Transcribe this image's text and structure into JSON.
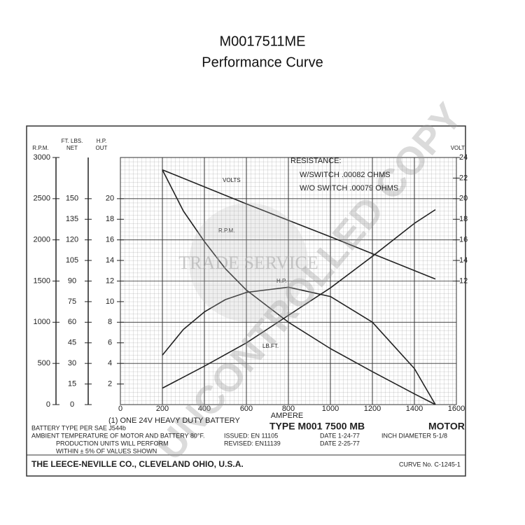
{
  "header": {
    "title": "M0017511ME",
    "subtitle": "Performance Curve"
  },
  "chart_data": {
    "type": "line",
    "x_label": "AMPERE",
    "xlim": [
      0,
      1600
    ],
    "xticks": [
      0,
      200,
      400,
      600,
      800,
      1000,
      1200,
      1400,
      1600
    ],
    "grid": true,
    "axes": {
      "rpm": {
        "label": "R.P.M.",
        "lim": [
          0,
          3000
        ],
        "ticks": [
          0,
          500,
          1000,
          1500,
          2000,
          2500,
          3000
        ]
      },
      "ftlbs": {
        "label": [
          "FT. LBS.",
          "NET"
        ],
        "lim": [
          0,
          180
        ],
        "ticks": [
          0,
          15,
          30,
          45,
          60,
          75,
          90,
          105,
          120,
          135,
          150
        ]
      },
      "hp": {
        "label": [
          "H.P.",
          "OUT"
        ],
        "lim": [
          0,
          24
        ],
        "ticks": [
          2,
          4,
          6,
          8,
          10,
          12,
          14,
          16,
          18,
          20
        ]
      },
      "volt": {
        "label": "VOLT",
        "lim": [
          0,
          24
        ],
        "ticks": [
          12,
          14,
          16,
          18,
          20,
          22,
          24
        ]
      }
    },
    "series": [
      {
        "name": "VOLTS",
        "axis": "volt",
        "color": "#222",
        "x": [
          200,
          600,
          1000,
          1500
        ],
        "values": [
          22.8,
          19.5,
          16.3,
          12.2
        ]
      },
      {
        "name": "R.P.M.",
        "axis": "rpm",
        "color": "#222",
        "x": [
          200,
          300,
          400,
          500,
          600,
          800,
          1000,
          1200,
          1400,
          1500
        ],
        "values": [
          2850,
          2350,
          1980,
          1650,
          1390,
          1000,
          680,
          400,
          130,
          0
        ]
      },
      {
        "name": "H.P.",
        "axis": "hp",
        "color": "#222",
        "x": [
          200,
          300,
          400,
          500,
          600,
          800,
          1000,
          1200,
          1400,
          1500
        ],
        "values": [
          4.8,
          7.3,
          9.0,
          10.2,
          10.9,
          11.4,
          10.5,
          8.0,
          3.5,
          0
        ]
      },
      {
        "name": "LB.FT.",
        "axis": "ftlbs",
        "color": "#222",
        "x": [
          200,
          400,
          600,
          800,
          1000,
          1200,
          1400,
          1500
        ],
        "values": [
          12,
          28,
          45,
          65,
          85,
          108,
          132,
          142
        ]
      }
    ],
    "annotations": [
      "RESISTANCE:",
      "W/SWITCH .00082 OHMS",
      "W/O SWITCH .00079 OHMS"
    ]
  },
  "footer": {
    "battery_note": "(1) ONE 24V HEAVY DUTY BATTERY",
    "battery_type": "BATTERY TYPE PER SAE J544b",
    "ambient": "AMBIENT TEMPERATURE OF MOTOR AND BATTERY 80°F.",
    "production": "PRODUCTION UNITS WILL PERFORM",
    "within": "WITHIN ± 5% OF VALUES SHOWN",
    "type": "TYPE M001 7500 MB",
    "motor": "MOTOR",
    "issued": "ISSUED: EN 11105",
    "revised": "REVISED: EN11139",
    "date1": "DATE 1-24-77",
    "date2": "DATE 2-25-77",
    "diameter": "INCH DIAMETER 5-1/8",
    "company": "THE LEECE-NEVILLE CO., CLEVELAND OHIO, U.S.A.",
    "curve_no": "CURVE No. C-1245-1"
  },
  "watermark": {
    "main": "UNCONTROLLED COPY",
    "logo": "TRADE SERVICE"
  }
}
